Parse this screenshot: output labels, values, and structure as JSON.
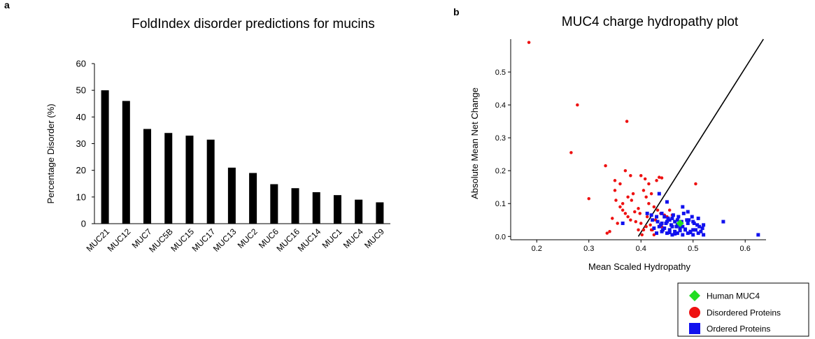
{
  "panel_a": {
    "label": "a"
  },
  "panel_b": {
    "label": "b"
  },
  "chart_data": [
    {
      "type": "bar",
      "title": "FoldIndex disorder predictions for mucins",
      "xlabel": "",
      "ylabel": "Percentage Disorder (%)",
      "ylim": [
        0,
        60
      ],
      "yticks": [
        0,
        10,
        20,
        30,
        40,
        50,
        60
      ],
      "categories": [
        "MUC21",
        "MUC12",
        "MUC7",
        "MUC5B",
        "MUC15",
        "MUC17",
        "MUC13",
        "MUC2",
        "MUC6",
        "MUC16",
        "MUC14",
        "MUC1",
        "MUC4",
        "MUC9"
      ],
      "values": [
        50,
        46,
        35.5,
        34,
        33,
        31.5,
        21,
        19,
        14.8,
        13.3,
        11.8,
        10.7,
        9,
        8
      ],
      "grid": false,
      "colors": {
        "bar": "#000000"
      }
    },
    {
      "type": "scatter",
      "title": "MUC4  charge hydropathy plot",
      "xlabel": "Mean Scaled Hydropathy",
      "ylabel": "Absolute Mean Net Change",
      "xticks": [
        "0.2",
        "0.3",
        "0.4",
        "0.5",
        "0.6"
      ],
      "yticks": [
        "0.0",
        "0.1",
        "0.2",
        "0.3",
        "0.4",
        "0.5"
      ],
      "xlim": [
        0.15,
        0.64
      ],
      "ylim": [
        -0.01,
        0.6
      ],
      "grid": false,
      "legend_position": "bottom-right",
      "boundary_line": [
        [
          0.395,
          0.0
        ],
        [
          0.635,
          0.6
        ]
      ],
      "series": [
        {
          "name": "Human MUC4",
          "marker": "diamond",
          "color": "#22dd22",
          "x": [
            0.475
          ],
          "y": [
            0.04
          ]
        },
        {
          "name": "Disordered Proteins",
          "marker": "circle",
          "color": "#ee1111",
          "x": [
            0.185,
            0.278,
            0.266,
            0.3,
            0.373,
            0.332,
            0.35,
            0.37,
            0.36,
            0.35,
            0.38,
            0.385,
            0.395,
            0.4,
            0.408,
            0.405,
            0.415,
            0.42,
            0.43,
            0.435,
            0.44,
            0.41,
            0.415,
            0.425,
            0.432,
            0.438,
            0.445,
            0.45,
            0.455,
            0.46,
            0.505,
            0.36,
            0.365,
            0.37,
            0.375,
            0.38,
            0.39,
            0.4,
            0.41,
            0.42,
            0.345,
            0.355,
            0.335,
            0.34,
            0.395,
            0.405,
            0.418,
            0.428,
            0.412,
            0.398,
            0.388,
            0.365,
            0.352,
            0.375,
            0.382,
            0.422,
            0.43,
            0.425,
            0.44,
            0.402
          ],
          "y": [
            0.59,
            0.4,
            0.255,
            0.115,
            0.35,
            0.215,
            0.17,
            0.2,
            0.16,
            0.14,
            0.185,
            0.13,
            0.085,
            0.185,
            0.175,
            0.14,
            0.16,
            0.13,
            0.17,
            0.18,
            0.178,
            0.12,
            0.1,
            0.09,
            0.08,
            0.07,
            0.065,
            0.06,
            0.08,
            0.065,
            0.16,
            0.09,
            0.08,
            0.07,
            0.06,
            0.05,
            0.045,
            0.04,
            0.03,
            0.02,
            0.055,
            0.04,
            0.01,
            0.015,
            0.02,
            0.02,
            0.035,
            0.05,
            0.06,
            0.07,
            0.075,
            0.1,
            0.11,
            0.12,
            0.11,
            0.02,
            0.01,
            0.005,
            0.03,
            0.005
          ]
        },
        {
          "name": "Ordered Proteins",
          "marker": "square",
          "color": "#1111ee",
          "x": [
            0.435,
            0.45,
            0.44,
            0.445,
            0.455,
            0.46,
            0.465,
            0.47,
            0.48,
            0.49,
            0.5,
            0.51,
            0.52,
            0.558,
            0.625,
            0.365,
            0.42,
            0.43,
            0.44,
            0.45,
            0.46,
            0.47,
            0.48,
            0.49,
            0.5,
            0.425,
            0.435,
            0.445,
            0.455,
            0.465,
            0.475,
            0.485,
            0.495,
            0.505,
            0.515,
            0.43,
            0.44,
            0.45,
            0.46,
            0.47,
            0.48,
            0.49,
            0.5,
            0.51,
            0.52,
            0.438,
            0.448,
            0.458,
            0.468,
            0.478,
            0.488,
            0.498,
            0.508,
            0.518,
            0.442,
            0.452,
            0.462,
            0.472,
            0.482,
            0.492,
            0.502,
            0.512,
            0.432,
            0.422,
            0.412,
            0.455,
            0.465,
            0.475,
            0.485,
            0.495
          ],
          "y": [
            0.13,
            0.105,
            0.07,
            0.06,
            0.05,
            0.055,
            0.045,
            0.05,
            0.09,
            0.075,
            0.045,
            0.055,
            0.035,
            0.045,
            0.005,
            0.04,
            0.065,
            0.06,
            0.04,
            0.045,
            0.03,
            0.035,
            0.03,
            0.04,
            0.02,
            0.025,
            0.03,
            0.025,
            0.02,
            0.015,
            0.025,
            0.02,
            0.015,
            0.02,
            0.015,
            0.01,
            0.015,
            0.01,
            0.005,
            0.01,
            0.005,
            0.01,
            0.005,
            0.01,
            0.005,
            0.035,
            0.04,
            0.035,
            0.03,
            0.045,
            0.05,
            0.06,
            0.035,
            0.025,
            0.02,
            0.055,
            0.065,
            0.06,
            0.07,
            0.05,
            0.04,
            0.03,
            0.045,
            0.05,
            0.07,
            0.012,
            0.008,
            0.018,
            0.022,
            0.012
          ]
        }
      ]
    }
  ]
}
